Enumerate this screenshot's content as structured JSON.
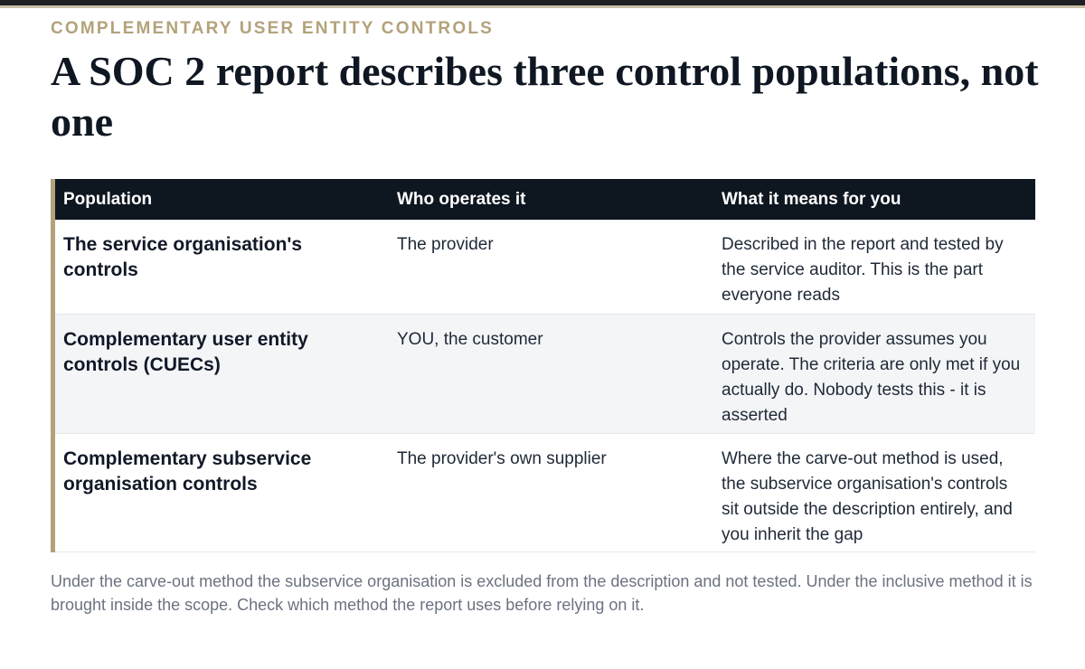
{
  "eyebrow": "COMPLEMENTARY USER ENTITY CONTROLS",
  "title": "A SOC 2 report describes three control populations, not one",
  "table": {
    "headers": [
      "Population",
      "Who operates it",
      "What it means for you"
    ],
    "rows": [
      {
        "population": "The service organisation's controls",
        "operator": "The provider",
        "meaning": "Described in the report and tested by the service auditor. This is the part everyone reads"
      },
      {
        "population": "Complementary user entity controls (CUECs)",
        "operator": "YOU, the customer",
        "meaning": "Controls the provider assumes you operate. The criteria are only met if you actually do. Nobody tests this - it is asserted"
      },
      {
        "population": "Complementary subservice organisation controls",
        "operator": "The provider's own supplier",
        "meaning": "Where the carve-out method is used, the subservice organisation's controls sit outside the description entirely, and you inherit the gap"
      }
    ]
  },
  "footnote": "Under the carve-out method the subservice organisation is excluded from the description and not tested. Under the inclusive method it is brought inside the scope. Check which method the report uses before relying on it.",
  "colors": {
    "accent": "#b3a27a",
    "header_bg": "#0e1620",
    "stripe_bg": "#f4f5f7",
    "muted_text": "#6b7280"
  }
}
